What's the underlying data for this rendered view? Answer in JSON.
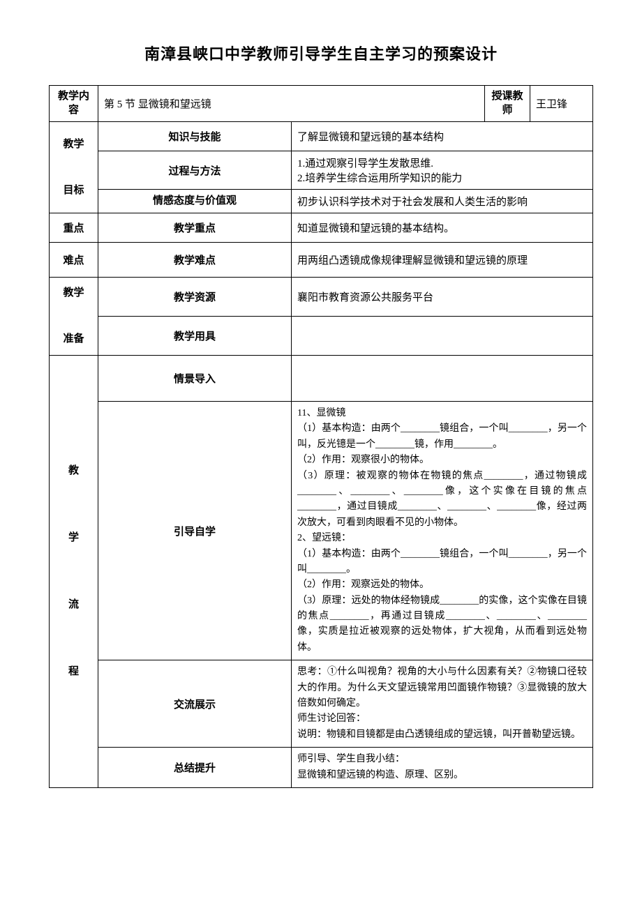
{
  "title": "南漳县峡口中学教师引导学生自主学习的预案设计",
  "rows": {
    "teaching_content": {
      "label": "教学内容",
      "value": "第 5 节  显微镜和望远镜",
      "teacher_label": "授课教师",
      "teacher_name": "王卫锋"
    },
    "teaching_goal": {
      "label": "教学\n\n目标",
      "knowledge_label": "知识与技能",
      "knowledge_value": "了解显微镜和望远镜的基本结构",
      "process_label": "过程与方法",
      "process_value": "1.通过观察引导学生发散思维.\n2.培养学生综合运用所学知识的能力",
      "emotion_label": "情感态度与价值观",
      "emotion_value": "初步认识科学技术对于社会发展和人类生活的影响"
    },
    "key_point": {
      "label": "重点",
      "sub_label": "教学重点",
      "value": "知道显微镜和望远镜的基本结构。"
    },
    "difficult_point": {
      "label": "难点",
      "sub_label": "教学难点",
      "value": "用两组凸透镜成像规律理解显微镜和望远镜的原理"
    },
    "preparation": {
      "label": "教学\n\n准备",
      "resource_label": "教学资源",
      "resource_value": "襄阳市教育资源公共服务平台",
      "tools_label": "教学用具",
      "tools_value": ""
    },
    "process": {
      "label": "教\n\n学\n\n流\n\n程",
      "intro_label": "情景导入",
      "intro_value": "",
      "self_study_label": "引导自学",
      "self_study_value": "11、显微镜\n（1）基本构造：由两个________镜组合，一个叫________，另一个叫，反光镱是一个________镜，作用________。\n（2）作用：观察很小的物体。\n（3）原理：被观察的物体在物镜的焦点________，通过物镜成________、________、________像，这个实像在目镜的焦点________，通过目镜成________、________、________像，经过两次放大，可看到肉眼看不见的小物体。\n2、望远镜：\n（1）基本构造：由两个________镜组合，一个叫________，另一个叫________。\n（2）作用：观察远处的物体。\n（3）原理：远处的物体经物镜成________的实像，这个实像在目镜的焦点________，再通过目镜成________、________、________像，实质是拉近被观察的远处物体，扩大视角，从而看到远处物体。",
      "discuss_label": "交流展示",
      "discuss_value": "思考：①什么叫视角？视角的大小与什么因素有关？②物镜口径较大的作用。为什么天文望远镜常用凹面镜作物镜？③显微镜的放大倍数如何确定。\n师生讨论回答：\n说明：物镜和目镜都是由凸透镜组成的望远镜，叫开普勒望远镜。",
      "summary_label": "总结提升",
      "summary_value": "师引导、学生自我小结：\n显微镜和望远镜的构造、原理、区别。"
    }
  }
}
